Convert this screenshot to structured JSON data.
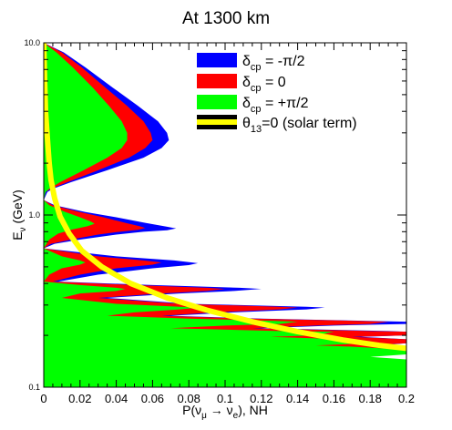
{
  "chart_data": {
    "type": "area",
    "title": "At 1300 km",
    "xlabel": "P(ν_μ → ν_e), NH",
    "ylabel": "E_ν (GeV)",
    "xlim": [
      0,
      0.2
    ],
    "ylim": [
      0.1,
      10.0
    ],
    "y_scale": "log",
    "x_ticks": [
      "0",
      "0.02",
      "0.04",
      "0.06",
      "0.08",
      "0.1",
      "0.12",
      "0.14",
      "0.16",
      "0.18",
      "0.2"
    ],
    "y_ticks": [
      "0.1",
      "1.0",
      "10.0"
    ],
    "legend_position": "top-right",
    "series": [
      {
        "name": "δ_cp = -π/2",
        "color": "#0000ff",
        "points": [
          [
            0.0,
            10.0
          ],
          [
            0.011,
            8.8
          ],
          [
            0.023,
            7.2
          ],
          [
            0.038,
            5.5
          ],
          [
            0.052,
            4.3
          ],
          [
            0.063,
            3.5
          ],
          [
            0.068,
            3.0
          ],
          [
            0.069,
            2.72
          ],
          [
            0.065,
            2.45
          ],
          [
            0.055,
            2.15
          ],
          [
            0.035,
            1.82
          ],
          [
            0.015,
            1.55
          ],
          [
            0.005,
            1.42
          ],
          [
            0.002,
            1.36
          ],
          [
            0.0,
            1.22
          ],
          [
            0.006,
            1.14
          ],
          [
            0.023,
            1.04
          ],
          [
            0.04,
            0.97
          ],
          [
            0.056,
            0.9
          ],
          [
            0.068,
            0.855
          ],
          [
            0.073,
            0.835
          ],
          [
            0.068,
            0.815
          ],
          [
            0.055,
            0.8
          ],
          [
            0.04,
            0.77
          ],
          [
            0.02,
            0.72
          ],
          [
            0.006,
            0.68
          ],
          [
            0.0,
            0.64
          ],
          [
            0.04,
            0.575
          ],
          [
            0.072,
            0.545
          ],
          [
            0.085,
            0.525
          ],
          [
            0.08,
            0.512
          ],
          [
            0.06,
            0.49
          ],
          [
            0.03,
            0.45
          ],
          [
            0.008,
            0.41
          ],
          [
            0.06,
            0.392
          ],
          [
            0.108,
            0.378
          ],
          [
            0.12,
            0.372
          ],
          [
            0.105,
            0.362
          ],
          [
            0.075,
            0.35
          ],
          [
            0.035,
            0.33
          ],
          [
            0.08,
            0.305
          ],
          [
            0.145,
            0.293
          ],
          [
            0.155,
            0.29
          ],
          [
            0.145,
            0.283
          ],
          [
            0.105,
            0.272
          ],
          [
            0.07,
            0.26
          ],
          [
            0.12,
            0.25
          ],
          [
            0.185,
            0.242
          ],
          [
            0.2,
            0.24
          ],
          [
            0.2,
            0.233
          ],
          [
            0.16,
            0.228
          ],
          [
            0.12,
            0.22
          ],
          [
            0.19,
            0.212
          ],
          [
            0.2,
            0.21
          ],
          [
            0.2,
            0.2
          ],
          [
            0.175,
            0.196
          ],
          [
            0.2,
            0.19
          ],
          [
            0.2,
            0.18
          ],
          [
            0.185,
            0.175
          ],
          [
            0.2,
            0.172
          ],
          [
            0.2,
            0.165
          ]
        ]
      },
      {
        "name": "δ_cp = 0",
        "color": "#ff0000",
        "points": [
          [
            0.0,
            10.0
          ],
          [
            0.01,
            8.8
          ],
          [
            0.021,
            7.2
          ],
          [
            0.034,
            5.5
          ],
          [
            0.046,
            4.3
          ],
          [
            0.055,
            3.5
          ],
          [
            0.059,
            3.0
          ],
          [
            0.06,
            2.72
          ],
          [
            0.056,
            2.45
          ],
          [
            0.047,
            2.15
          ],
          [
            0.03,
            1.82
          ],
          [
            0.013,
            1.55
          ],
          [
            0.004,
            1.42
          ],
          [
            0.001,
            1.36
          ],
          [
            0.0,
            1.22
          ],
          [
            0.005,
            1.14
          ],
          [
            0.02,
            1.04
          ],
          [
            0.033,
            0.97
          ],
          [
            0.045,
            0.9
          ],
          [
            0.053,
            0.86
          ],
          [
            0.056,
            0.84
          ],
          [
            0.052,
            0.82
          ],
          [
            0.042,
            0.8
          ],
          [
            0.03,
            0.77
          ],
          [
            0.015,
            0.72
          ],
          [
            0.004,
            0.68
          ],
          [
            0.0,
            0.64
          ],
          [
            0.03,
            0.575
          ],
          [
            0.055,
            0.545
          ],
          [
            0.065,
            0.53
          ],
          [
            0.06,
            0.515
          ],
          [
            0.04,
            0.49
          ],
          [
            0.02,
            0.45
          ],
          [
            0.005,
            0.41
          ],
          [
            0.05,
            0.392
          ],
          [
            0.09,
            0.378
          ],
          [
            0.1,
            0.372
          ],
          [
            0.09,
            0.362
          ],
          [
            0.065,
            0.35
          ],
          [
            0.03,
            0.33
          ],
          [
            0.075,
            0.305
          ],
          [
            0.13,
            0.293
          ],
          [
            0.14,
            0.29
          ],
          [
            0.13,
            0.283
          ],
          [
            0.095,
            0.272
          ],
          [
            0.065,
            0.26
          ],
          [
            0.115,
            0.25
          ],
          [
            0.17,
            0.243
          ],
          [
            0.19,
            0.24
          ],
          [
            0.18,
            0.233
          ],
          [
            0.15,
            0.228
          ],
          [
            0.115,
            0.22
          ],
          [
            0.18,
            0.212
          ],
          [
            0.2,
            0.21
          ],
          [
            0.2,
            0.2
          ],
          [
            0.17,
            0.196
          ],
          [
            0.2,
            0.19
          ],
          [
            0.2,
            0.18
          ],
          [
            0.18,
            0.175
          ],
          [
            0.2,
            0.172
          ],
          [
            0.2,
            0.165
          ]
        ]
      },
      {
        "name": "δ_cp = +π/2",
        "color": "#00ff00",
        "points": [
          [
            0.0,
            10.0
          ],
          [
            0.007,
            8.8
          ],
          [
            0.016,
            7.2
          ],
          [
            0.027,
            5.5
          ],
          [
            0.036,
            4.3
          ],
          [
            0.043,
            3.5
          ],
          [
            0.046,
            3.0
          ],
          [
            0.046,
            2.72
          ],
          [
            0.043,
            2.45
          ],
          [
            0.035,
            2.15
          ],
          [
            0.022,
            1.82
          ],
          [
            0.009,
            1.55
          ],
          [
            0.003,
            1.42
          ],
          [
            0.001,
            1.36
          ],
          [
            0.0,
            1.22
          ],
          [
            0.003,
            1.14
          ],
          [
            0.012,
            1.04
          ],
          [
            0.02,
            0.97
          ],
          [
            0.026,
            0.915
          ],
          [
            0.028,
            0.89
          ],
          [
            0.024,
            0.86
          ],
          [
            0.015,
            0.82
          ],
          [
            0.008,
            0.78
          ],
          [
            0.003,
            0.72
          ],
          [
            0.0,
            0.64
          ],
          [
            0.01,
            0.575
          ],
          [
            0.02,
            0.545
          ],
          [
            0.023,
            0.53
          ],
          [
            0.02,
            0.515
          ],
          [
            0.01,
            0.49
          ],
          [
            0.003,
            0.45
          ],
          [
            0.0,
            0.41
          ],
          [
            0.02,
            0.392
          ],
          [
            0.04,
            0.378
          ],
          [
            0.045,
            0.372
          ],
          [
            0.04,
            0.362
          ],
          [
            0.02,
            0.35
          ],
          [
            0.01,
            0.33
          ],
          [
            0.04,
            0.305
          ],
          [
            0.075,
            0.293
          ],
          [
            0.085,
            0.29
          ],
          [
            0.075,
            0.283
          ],
          [
            0.05,
            0.272
          ],
          [
            0.035,
            0.26
          ],
          [
            0.08,
            0.25
          ],
          [
            0.125,
            0.243
          ],
          [
            0.14,
            0.24
          ],
          [
            0.13,
            0.233
          ],
          [
            0.1,
            0.228
          ],
          [
            0.07,
            0.22
          ],
          [
            0.13,
            0.212
          ],
          [
            0.16,
            0.21
          ],
          [
            0.15,
            0.2
          ],
          [
            0.125,
            0.196
          ],
          [
            0.165,
            0.19
          ],
          [
            0.18,
            0.18
          ],
          [
            0.15,
            0.175
          ],
          [
            0.17,
            0.172
          ],
          [
            0.2,
            0.165
          ],
          [
            0.2,
            0.155
          ],
          [
            0.18,
            0.15
          ],
          [
            0.2,
            0.145
          ],
          [
            0.2,
            0.1
          ]
        ]
      },
      {
        "name": "θ_13=0 (solar term)",
        "color": "#ffff00",
        "points": [
          [
            0.0,
            10.0
          ],
          [
            0.0005,
            6.0
          ],
          [
            0.001,
            4.0
          ],
          [
            0.002,
            2.8
          ],
          [
            0.003,
            2.0
          ],
          [
            0.004,
            1.6
          ],
          [
            0.006,
            1.25
          ],
          [
            0.009,
            0.98
          ],
          [
            0.014,
            0.78
          ],
          [
            0.021,
            0.62
          ],
          [
            0.032,
            0.5
          ],
          [
            0.048,
            0.4
          ],
          [
            0.068,
            0.33
          ],
          [
            0.09,
            0.28
          ],
          [
            0.115,
            0.24
          ],
          [
            0.14,
            0.21
          ],
          [
            0.165,
            0.188
          ],
          [
            0.185,
            0.175
          ],
          [
            0.2,
            0.168
          ]
        ]
      }
    ],
    "legend": [
      {
        "label": "δ",
        "sub": "cp",
        "rest": " = -π/2"
      },
      {
        "label": "δ",
        "sub": "cp",
        "rest": " = 0"
      },
      {
        "label": "δ",
        "sub": "cp",
        "rest": " = +π/2"
      },
      {
        "label": "θ",
        "sub": "13",
        "rest": "=0 (solar term)"
      }
    ],
    "xlabel_parts": {
      "main": "P(ν",
      "sub1": "μ",
      "mid": " → ν",
      "sub2": "e",
      "tail": "), NH"
    },
    "ylabel_parts": {
      "main": "E",
      "sub": "ν",
      "tail": " (GeV)"
    }
  }
}
